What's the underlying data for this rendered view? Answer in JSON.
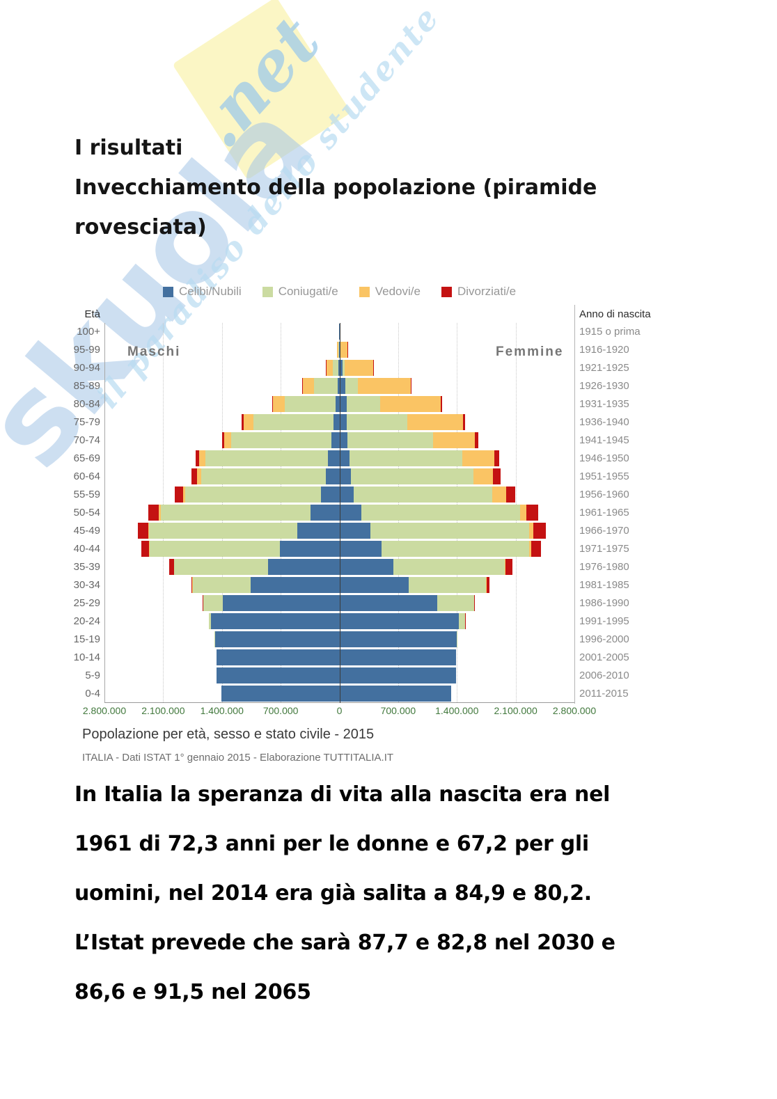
{
  "page": {
    "heading_lines": [
      "I risultati",
      "Invecchiamento della popolazione (piramide",
      "rovesciata)"
    ],
    "body_lines": [
      "In Italia la speranza di vita alla nascita era nel",
      "1961 di 72,3 anni per le donne e 67,2 per gli",
      "uomini, nel 2014 era già salita a 84,9 e 80,2.",
      "L’Istat prevede che sarà 87,7 e 82,8 nel 2030 e",
      "86,6 e 91,5 nel 2065"
    ]
  },
  "watermark": {
    "brand": "skuola",
    "brand_suffix": ".net",
    "tagline": "il paradiso dello studente",
    "brand_color": "#a5c6e6",
    "tile_color": "#fbf5c2"
  },
  "chart_data": {
    "type": "bar",
    "variant": "population-pyramid-stacked-horizontal",
    "title": "Popolazione per età, sesso e stato civile - 2015",
    "source": "ITALIA - Dati ISTAT 1° gennaio 2015 - Elaborazione TUTTITALIA.IT",
    "left_axis_label": "Età",
    "right_axis_label": "Anno di nascita",
    "male_label": "Maschi",
    "female_label": "Femmine",
    "legend_position": "top-center",
    "grid": "vertical-dotted",
    "x_max": 2800000,
    "x_tick_interval": 700000,
    "x_ticks": [
      "2.800.000",
      "2.100.000",
      "1.400.000",
      "700.000",
      "0",
      "700.000",
      "1.400.000",
      "2.100.000",
      "2.800.000"
    ],
    "tick_color": "#41783c",
    "legend": [
      {
        "label": "Celibi/Nubili",
        "color": "#43709f"
      },
      {
        "label": "Coniugati/e",
        "color": "#cbdba1"
      },
      {
        "label": "Vedovi/e",
        "color": "#fac464"
      },
      {
        "label": "Divorziati/e",
        "color": "#c41212"
      }
    ],
    "segment_order": [
      "Celibi/Nubili",
      "Coniugati/e",
      "Vedovi/e",
      "Divorziati/e"
    ],
    "units": "persone",
    "rows": [
      {
        "age": "100+",
        "birth": "1915 o prima",
        "male": [
          300,
          800,
          1900,
          50
        ],
        "female": [
          1500,
          500,
          14000,
          100
        ]
      },
      {
        "age": "95-99",
        "birth": "1916-1920",
        "male": [
          2000,
          8400,
          17000,
          600
        ],
        "female": [
          10000,
          3000,
          84000,
          1000
        ]
      },
      {
        "age": "90-94",
        "birth": "1921-1925",
        "male": [
          9000,
          71000,
          76000,
          2000
        ],
        "female": [
          37000,
          29000,
          339000,
          4000
        ]
      },
      {
        "age": "85-89",
        "birth": "1926-1930",
        "male": [
          24000,
          280000,
          133000,
          4000
        ],
        "female": [
          68000,
          148000,
          632000,
          8000
        ]
      },
      {
        "age": "80-84",
        "birth": "1931-1935",
        "male": [
          44000,
          607000,
          145000,
          9000
        ],
        "female": [
          86000,
          400000,
          722000,
          15000
        ]
      },
      {
        "age": "75-79",
        "birth": "1936-1940",
        "male": [
          70000,
          958000,
          116000,
          18000
        ],
        "female": [
          90000,
          719000,
          660000,
          30000
        ]
      },
      {
        "age": "70-74",
        "birth": "1941-1945",
        "male": [
          98000,
          1194000,
          84000,
          23000
        ],
        "female": [
          99000,
          1014000,
          497000,
          45000
        ]
      },
      {
        "age": "65-69",
        "birth": "1946-1950",
        "male": [
          137000,
          1464000,
          69000,
          45000
        ],
        "female": [
          124000,
          1337000,
          381000,
          65000
        ]
      },
      {
        "age": "60-64",
        "birth": "1951-1955",
        "male": [
          159000,
          1491000,
          44000,
          70000
        ],
        "female": [
          134000,
          1465000,
          230000,
          90000
        ]
      },
      {
        "age": "55-59",
        "birth": "1956-1960",
        "male": [
          216000,
          1619000,
          29000,
          100000
        ],
        "female": [
          168000,
          1650000,
          168000,
          110000
        ]
      },
      {
        "age": "50-54",
        "birth": "1961-1965",
        "male": [
          342000,
          1784000,
          23000,
          130000
        ],
        "female": [
          260000,
          1889000,
          80000,
          140000
        ]
      },
      {
        "age": "45-49",
        "birth": "1966-1970",
        "male": [
          504000,
          1763000,
          12000,
          120000
        ],
        "female": [
          370000,
          1894000,
          49000,
          150000
        ]
      },
      {
        "age": "40-44",
        "birth": "1971-1975",
        "male": [
          709000,
          1552000,
          6000,
          95000
        ],
        "female": [
          504000,
          1754000,
          30000,
          110000
        ]
      },
      {
        "age": "35-39",
        "birth": "1976-1980",
        "male": [
          853000,
          1118000,
          3000,
          58000
        ],
        "female": [
          640000,
          1328000,
          14000,
          80000
        ]
      },
      {
        "age": "30-34",
        "birth": "1981-1985",
        "male": [
          1060000,
          690000,
          1000,
          16000
        ],
        "female": [
          823000,
          925000,
          5000,
          36000
        ]
      },
      {
        "age": "25-29",
        "birth": "1986-1990",
        "male": [
          1390000,
          235000,
          0,
          3000
        ],
        "female": [
          1165000,
          440000,
          1000,
          9000
        ]
      },
      {
        "age": "20-24",
        "birth": "1991-1995",
        "male": [
          1530000,
          28000,
          0,
          0
        ],
        "female": [
          1420000,
          75000,
          0,
          2000
        ]
      },
      {
        "age": "15-19",
        "birth": "1996-2000",
        "male": [
          1485000,
          2000,
          0,
          0
        ],
        "female": [
          1395000,
          8000,
          0,
          0
        ]
      },
      {
        "age": "10-14",
        "birth": "2001-2005",
        "male": [
          1467000,
          0,
          0,
          0
        ],
        "female": [
          1389000,
          0,
          0,
          0
        ]
      },
      {
        "age": "5-9",
        "birth": "2006-2010",
        "male": [
          1467000,
          0,
          0,
          0
        ],
        "female": [
          1388000,
          0,
          0,
          0
        ]
      },
      {
        "age": "0-4",
        "birth": "2011-2015",
        "male": [
          1406000,
          0,
          0,
          0
        ],
        "female": [
          1331000,
          0,
          0,
          0
        ]
      }
    ]
  }
}
